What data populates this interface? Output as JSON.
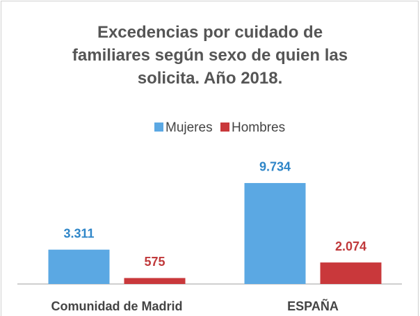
{
  "chart_data": {
    "type": "bar",
    "title": "Excedencias por cuidado de familiares según sexo de quien las solicita. Año 2018.",
    "categories": [
      "Comunidad de Madrid",
      "ESPAÑA"
    ],
    "series": [
      {
        "name": "Mujeres",
        "color": "#5ba8e3",
        "label_color": "#2f86c8",
        "values": [
          3311,
          9734
        ],
        "value_labels": [
          "3.311",
          "9.734"
        ]
      },
      {
        "name": "Hombres",
        "color": "#c9383b",
        "label_color": "#c0393b",
        "values": [
          575,
          2074
        ],
        "value_labels": [
          "575",
          "2.074"
        ]
      }
    ],
    "ylim": [
      0,
      10000
    ],
    "legend": "top"
  }
}
